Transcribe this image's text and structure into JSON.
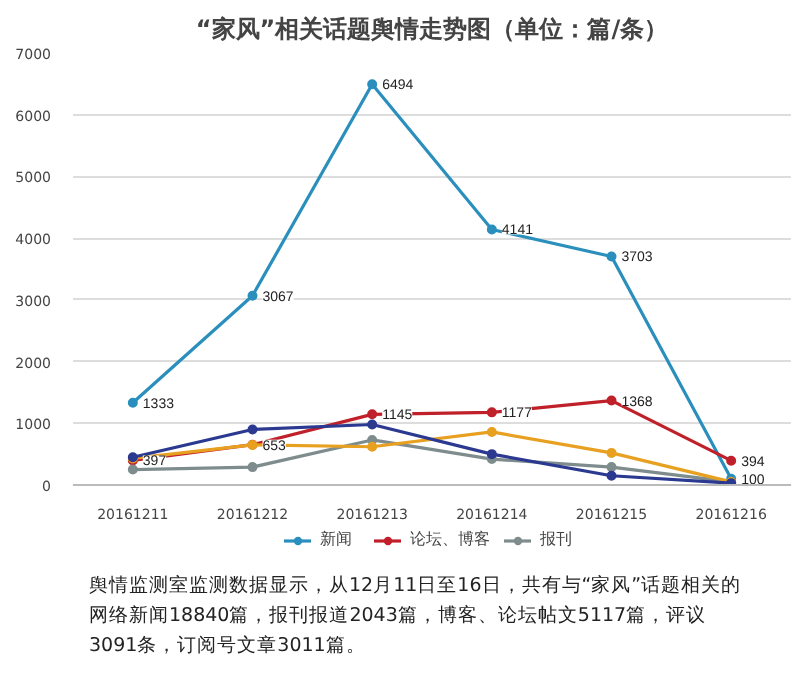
{
  "chart_data": {
    "type": "line",
    "title": "“家风”相关话题舆情走势图（单位：篇/条）",
    "categories": [
      "20161211",
      "20161212",
      "20161213",
      "20161214",
      "20161215",
      "20161216"
    ],
    "series": [
      {
        "name": "新闻",
        "color": "#2a8fbd",
        "values": [
          1333,
          3067,
          6494,
          4141,
          3703,
          100
        ],
        "value_labels": [
          "1333",
          "3067",
          "6494",
          "4141",
          "3703",
          "100"
        ]
      },
      {
        "name": "论坛、博客",
        "color": "#c0202a",
        "values": [
          397,
          653,
          1145,
          1177,
          1368,
          394
        ],
        "value_labels": [
          "397",
          "653",
          "1145",
          "1177",
          "1368",
          "394"
        ]
      },
      {
        "name": "报刊",
        "color": "#7f8c8d",
        "values": [
          250,
          290,
          730,
          420,
          290,
          50
        ]
      },
      {
        "color": "#e8a020",
        "values": [
          430,
          650,
          620,
          860,
          520,
          50
        ]
      },
      {
        "color": "#2b3990",
        "values": [
          450,
          900,
          980,
          500,
          150,
          30
        ]
      }
    ],
    "ylim": [
      0,
      7000
    ],
    "yticks": [
      0,
      1000,
      2000,
      3000,
      4000,
      5000,
      6000,
      7000
    ],
    "grid": "y",
    "legend": "bottom",
    "marker": "circle",
    "line_style": "solid",
    "annotations": [
      "舆情监测室监测数据显示，从12月11日至16日，共有与“家风”话题相关的网络新闻18840篇，报刊报道2043篇，博客、论坛帖文5117篇，评议3091条，订阅号文章3011篇。"
    ]
  }
}
